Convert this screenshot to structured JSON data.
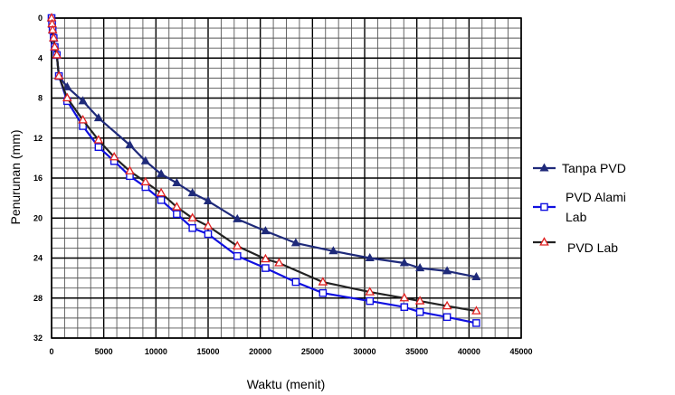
{
  "chart_data": {
    "type": "line",
    "xlabel": "Waktu (menit)",
    "ylabel": "Penurunan (mm)",
    "xlim": [
      0,
      45000
    ],
    "ylim": [
      0,
      32
    ],
    "y_inverted": true,
    "grid": true,
    "legend_position": "right",
    "x_ticks": [
      "0",
      "5000",
      "10000",
      "15000",
      "20000",
      "25000",
      "30000",
      "35000",
      "40000",
      "45000"
    ],
    "y_ticks": [
      "0",
      "4",
      "8",
      "12",
      "16",
      "20",
      "24",
      "28",
      "32"
    ],
    "series": [
      {
        "name": "Tanpa PVD",
        "legend_lines": [
          "Tanpa PVD"
        ],
        "color": "#1f2a7a",
        "marker": "triangle-filled",
        "x": [
          0,
          50,
          100,
          200,
          300,
          500,
          700,
          1500,
          3000,
          4500,
          7500,
          9000,
          10500,
          12000,
          13500,
          15000,
          17800,
          20500,
          23400,
          27000,
          30500,
          33800,
          35300,
          37900,
          40700
        ],
        "y": [
          0,
          0.6,
          1.2,
          2.0,
          2.9,
          3.7,
          5.8,
          6.9,
          8.3,
          10.0,
          12.7,
          14.3,
          15.6,
          16.5,
          17.5,
          18.3,
          20.1,
          21.3,
          22.5,
          23.3,
          24.0,
          24.5,
          25.0,
          25.3,
          25.9
        ]
      },
      {
        "name": "PVD Alami Lab",
        "legend_lines": [
          "PVD Alami",
          "Lab"
        ],
        "color": "#1010e0",
        "marker": "square-open",
        "x": [
          0,
          50,
          100,
          200,
          300,
          500,
          700,
          1500,
          3000,
          4500,
          6000,
          7500,
          9000,
          10500,
          12000,
          13500,
          15000,
          17800,
          20500,
          23400,
          26000,
          30500,
          33800,
          35300,
          37900,
          40700
        ],
        "y": [
          0,
          0.6,
          1.2,
          2.0,
          2.9,
          3.7,
          5.8,
          8.3,
          10.8,
          12.9,
          14.3,
          15.8,
          16.9,
          18.2,
          19.6,
          21.0,
          21.6,
          23.8,
          25.0,
          26.4,
          27.5,
          28.3,
          28.9,
          29.4,
          29.9,
          30.5
        ]
      },
      {
        "name": "PVD Lab",
        "legend_lines": [
          "PVD Lab"
        ],
        "color": "#e02020",
        "line_color": "#222222",
        "marker": "triangle-open",
        "x": [
          0,
          50,
          100,
          200,
          300,
          500,
          700,
          1500,
          3000,
          4500,
          6000,
          7500,
          9000,
          10500,
          12000,
          13500,
          15000,
          17800,
          20500,
          21800,
          26000,
          30500,
          33800,
          35300,
          37900,
          40700
        ],
        "y": [
          0,
          0.6,
          1.2,
          2.0,
          2.9,
          3.7,
          5.8,
          8.0,
          10.2,
          12.2,
          13.9,
          15.3,
          16.4,
          17.5,
          18.9,
          20.0,
          20.8,
          22.8,
          24.1,
          24.5,
          26.4,
          27.4,
          28.0,
          28.3,
          28.8,
          29.3
        ]
      }
    ]
  }
}
